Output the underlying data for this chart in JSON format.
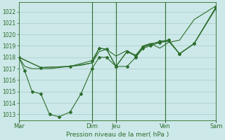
{
  "background_color": "#cce8e8",
  "grid_color": "#aacccc",
  "line_color": "#2d6e2d",
  "marker_color": "#2d6e2d",
  "xlabel_text": "Pression niveau de la mer( hPa )",
  "ylim": [
    1012.5,
    1022.8
  ],
  "yticks": [
    1013,
    1014,
    1015,
    1016,
    1017,
    1018,
    1019,
    1020,
    1021,
    1022
  ],
  "xtick_labels": [
    "Mar",
    "Dim",
    "Jeu",
    "Ven",
    "Sam"
  ],
  "xtick_positions": [
    0,
    100,
    133,
    200,
    270
  ],
  "vlines_x": [
    100,
    133,
    200,
    270
  ],
  "xlim": [
    0,
    270
  ],
  "series": [
    {
      "x": [
        0,
        8,
        18,
        30,
        42,
        55,
        70,
        85,
        100,
        110,
        120,
        133,
        148,
        160,
        170,
        180,
        193,
        205,
        220,
        240,
        270
      ],
      "y": [
        1018.0,
        1017.2,
        1017.0,
        1017.0,
        1017.0,
        1017.1,
        1017.2,
        1017.3,
        1017.5,
        1018.5,
        1018.7,
        1018.1,
        1018.6,
        1018.1,
        1019.0,
        1019.2,
        1018.8,
        1019.3,
        1019.5,
        1021.3,
        1022.5
      ],
      "has_markers": false,
      "lw": 0.8
    },
    {
      "x": [
        0,
        8,
        18,
        30,
        42,
        55,
        70,
        85,
        100,
        110,
        120,
        133,
        148,
        160,
        170,
        180,
        193,
        205,
        220,
        240,
        270
      ],
      "y": [
        1018.0,
        1016.8,
        1015.0,
        1014.8,
        1013.0,
        1012.8,
        1013.2,
        1014.8,
        1017.0,
        1018.0,
        1018.0,
        1017.2,
        1017.2,
        1018.0,
        1018.8,
        1019.0,
        1019.3,
        1019.5,
        1018.3,
        1019.2,
        1022.4
      ],
      "has_markers": true,
      "lw": 0.8
    },
    {
      "x": [
        0,
        30,
        70,
        100,
        110,
        120,
        133,
        148,
        160,
        170,
        180,
        205,
        220,
        240,
        270
      ],
      "y": [
        1018.0,
        1017.1,
        1017.2,
        1017.5,
        1018.8,
        1018.7,
        1017.2,
        1018.5,
        1018.2,
        1018.9,
        1019.2,
        1019.4,
        1018.3,
        1019.2,
        1022.4
      ],
      "has_markers": false,
      "lw": 0.8
    },
    {
      "x": [
        0,
        30,
        70,
        100,
        110,
        120,
        133,
        148,
        160,
        170,
        180,
        193,
        205,
        220,
        240,
        270
      ],
      "y": [
        1018.0,
        1017.1,
        1017.2,
        1017.7,
        1018.8,
        1018.7,
        1017.2,
        1018.5,
        1018.1,
        1018.9,
        1019.1,
        1019.4,
        1019.5,
        1018.3,
        1019.2,
        1022.3
      ],
      "has_markers": true,
      "lw": 0.8
    }
  ],
  "plot_bg": "#cce8e8"
}
